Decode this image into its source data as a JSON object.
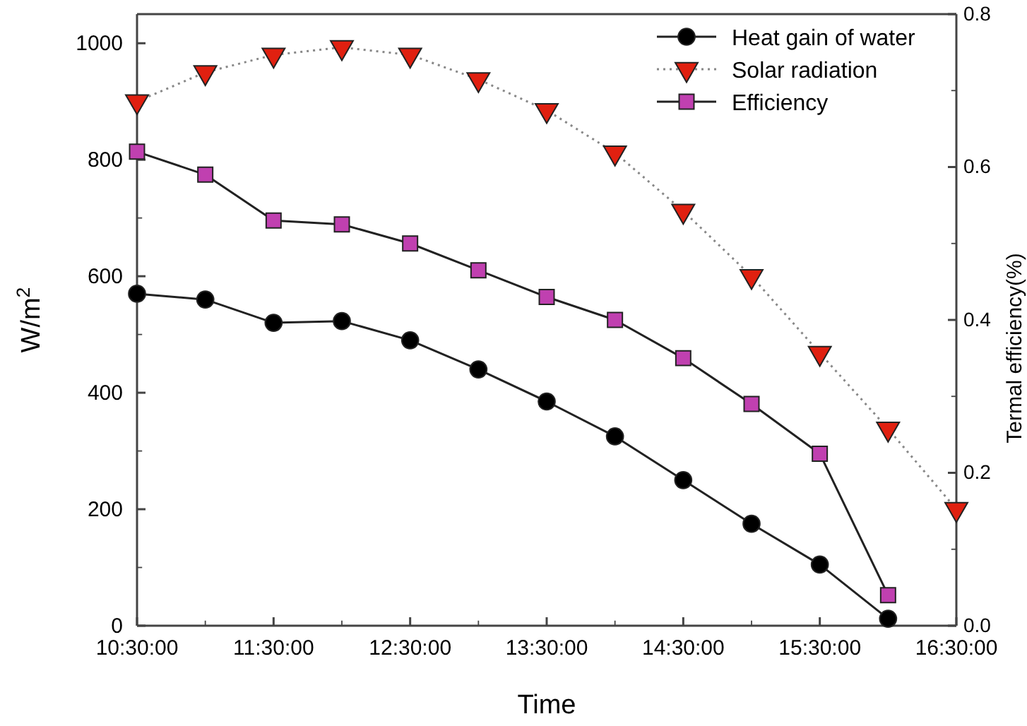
{
  "chart_data": {
    "type": "line",
    "xlabel": "Time",
    "ylabel": "W/m$^{2}$",
    "y2label": "Termal efficiency(%)",
    "x": [
      10.5,
      11,
      11.5,
      12,
      12.5,
      13,
      13.5,
      14,
      14.5,
      15,
      15.5,
      16,
      16.5
    ],
    "xlim": [
      10.5,
      16.5
    ],
    "xticks": [
      {
        "value": 10.5,
        "label": "10:30:00"
      },
      {
        "value": 11,
        "label": null
      },
      {
        "value": 11.5,
        "label": "11:30:00"
      },
      {
        "value": 12,
        "label": null
      },
      {
        "value": 12.5,
        "label": "12:30:00"
      },
      {
        "value": 13,
        "label": null
      },
      {
        "value": 13.5,
        "label": "13:30:00"
      },
      {
        "value": 14,
        "label": null
      },
      {
        "value": 14.5,
        "label": "14:30:00"
      },
      {
        "value": 15,
        "label": null
      },
      {
        "value": 15.5,
        "label": "15:30:00"
      },
      {
        "value": 16,
        "label": null
      },
      {
        "value": 16.5,
        "label": "16:30:00"
      }
    ],
    "ylim": [
      0,
      1050
    ],
    "yticks": [
      0,
      {
        "value": 100,
        "label": null
      },
      200,
      {
        "value": 300,
        "label": null
      },
      400,
      {
        "value": 500,
        "label": null
      },
      600,
      {
        "value": 700,
        "label": null
      },
      800,
      {
        "value": 900,
        "label": null
      },
      1000
    ],
    "y2lim": [
      0,
      0.8
    ],
    "y2ticks": [
      {
        "value": 0,
        "label": "0.0"
      },
      {
        "value": 0.1,
        "label": null
      },
      0.2,
      {
        "value": 0.3,
        "label": null
      },
      0.4,
      {
        "value": 0.5,
        "label": null
      },
      0.6,
      {
        "value": 0.7,
        "label": null
      },
      0.8
    ],
    "legend": "top right",
    "series": [
      {
        "name": "Heat gain of water",
        "color": "#000000",
        "marker": "circle",
        "line_style": "solid",
        "values": [
          570,
          560,
          520,
          523,
          490,
          440,
          385,
          325,
          250,
          175,
          105,
          12,
          null
        ]
      },
      {
        "name": "Solar radiation",
        "color": "#e02010",
        "marker": "triangle",
        "line_style": "dotted",
        "values": [
          900,
          950,
          980,
          993,
          980,
          938,
          885,
          812,
          712,
          600,
          468,
          338,
          200
        ]
      },
      {
        "name": "Efficiency",
        "color": "#c040b0",
        "marker": "square",
        "line_style": "solid",
        "axis": "y2",
        "values": [
          0.62,
          0.59,
          0.53,
          0.525,
          0.5,
          0.465,
          0.43,
          0.4,
          0.35,
          0.29,
          0.225,
          0.04,
          null
        ]
      }
    ]
  }
}
